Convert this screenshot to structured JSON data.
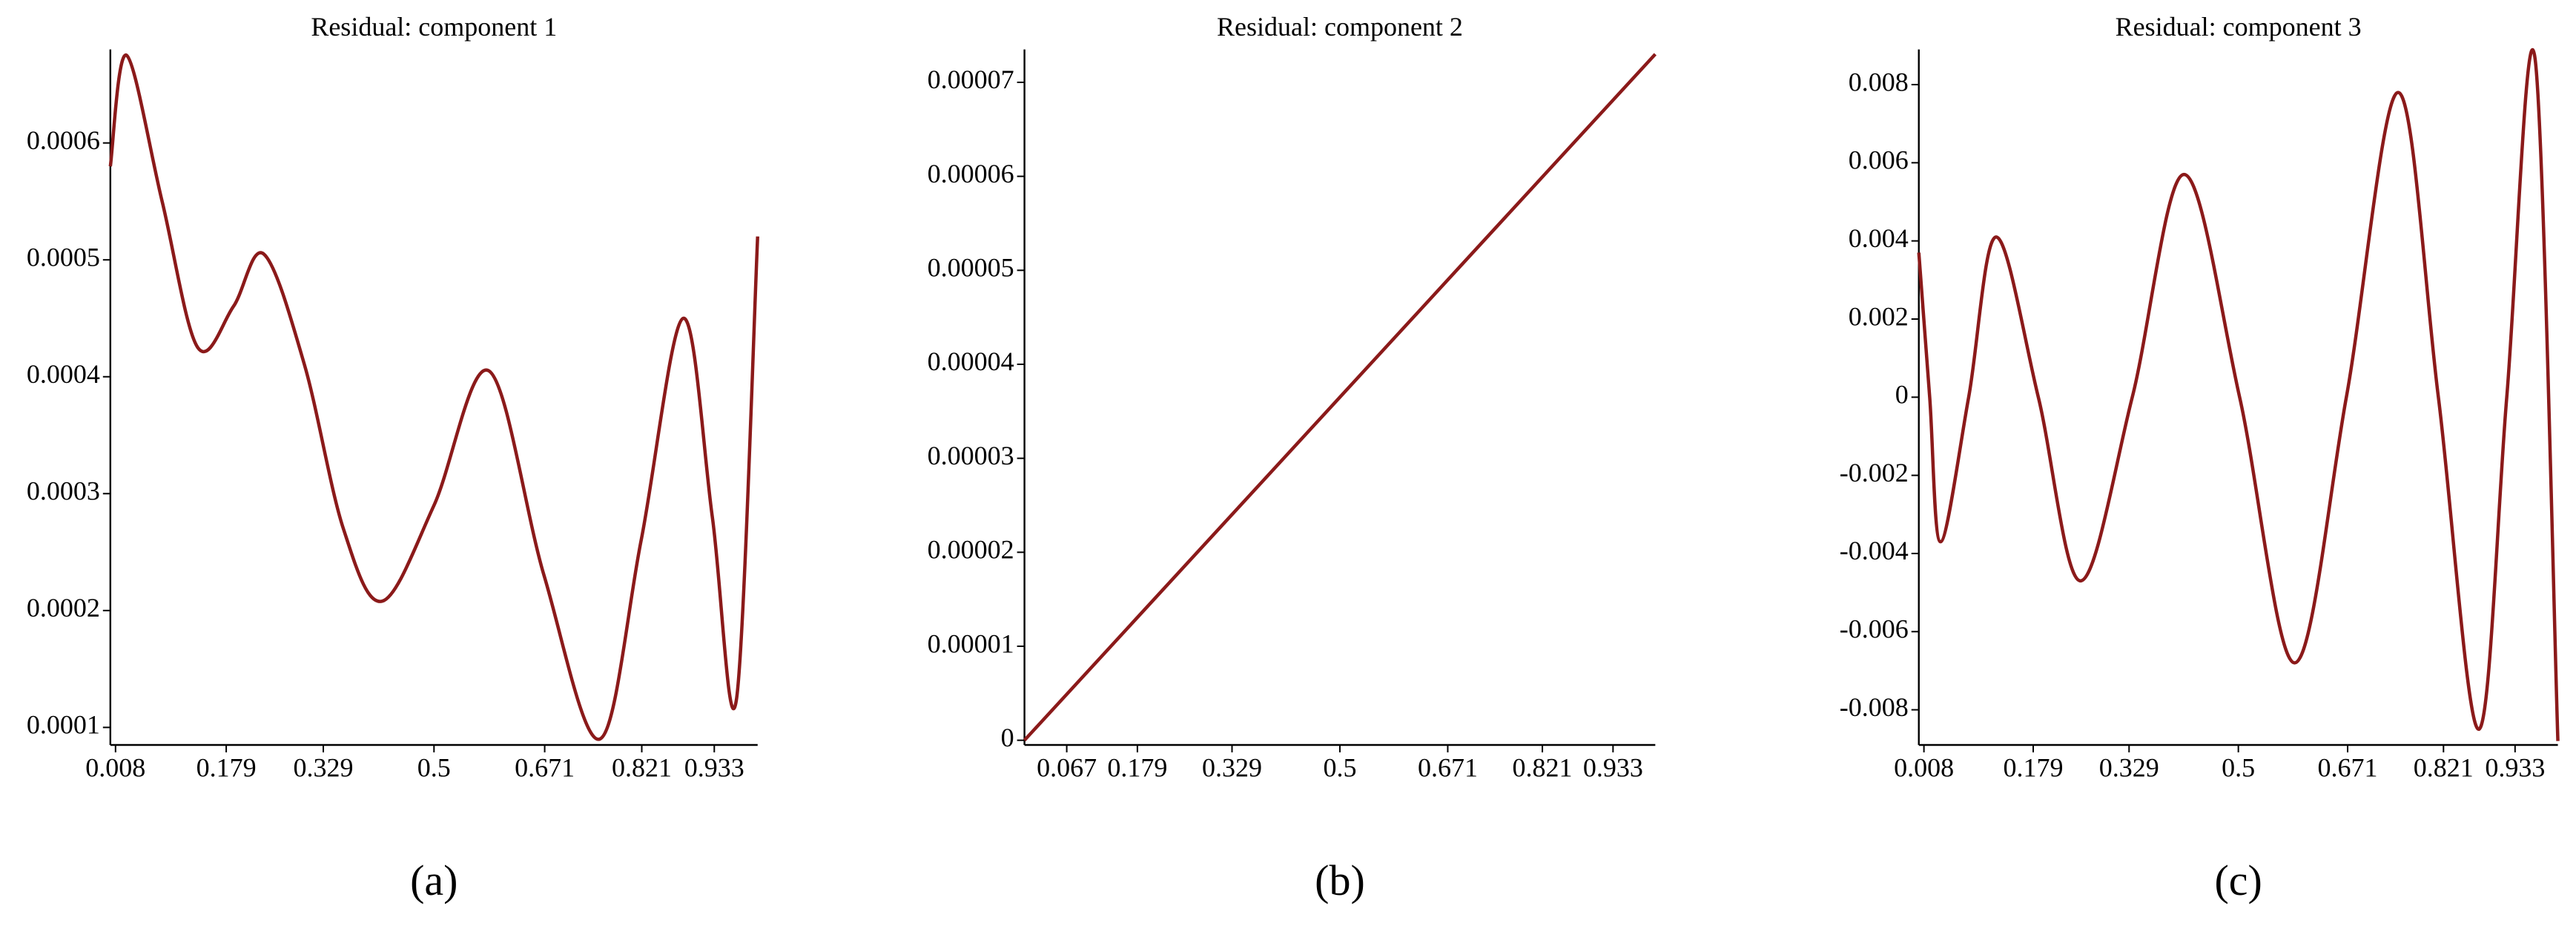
{
  "chart_data": [
    {
      "type": "line",
      "title": "Residual: component 1",
      "caption": "(a)",
      "color": "#8b1a1a",
      "x": [
        0,
        0.025,
        0.08,
        0.135,
        0.19,
        0.237,
        0.3,
        0.36,
        0.42,
        0.5,
        0.585,
        0.67,
        0.756,
        0.82,
        0.885,
        0.93,
        0.967,
        1.0
      ],
      "values": [
        0.00058,
        0.000675,
        0.00055,
        0.000425,
        0.00046,
        0.000505,
        0.00041,
        0.00027,
        0.000208,
        0.00029,
        0.000405,
        0.00023,
        9e-05,
        0.00026,
        0.00045,
        0.00028,
        0.000123,
        0.00052
      ],
      "xlim": [
        0,
        1
      ],
      "xticks": [
        0.008,
        0.179,
        0.329,
        0.5,
        0.671,
        0.821,
        0.933
      ],
      "ylim": [
        8.5e-05,
        0.00068
      ],
      "yticks": [
        0.0001,
        0.0002,
        0.0003,
        0.0004,
        0.0005,
        0.0006
      ]
    },
    {
      "type": "line",
      "title": "Residual: component 2",
      "caption": "(b)",
      "color": "#8b1a1a",
      "x": [
        0,
        0.5,
        1
      ],
      "values": [
        0,
        3.65e-05,
        7.3e-05
      ],
      "xlim": [
        0,
        1
      ],
      "xticks": [
        0.067,
        0.179,
        0.329,
        0.5,
        0.671,
        0.821,
        0.933
      ],
      "ylim": [
        -5e-07,
        7.35e-05
      ],
      "yticks": [
        0,
        1e-05,
        2e-05,
        3e-05,
        4e-05,
        5e-05,
        6e-05,
        7e-05
      ]
    },
    {
      "type": "line",
      "title": "Residual: component 3",
      "caption": "(c)",
      "color": "#8b1a1a",
      "x": [
        0,
        0.017,
        0.034,
        0.078,
        0.121,
        0.187,
        0.253,
        0.334,
        0.415,
        0.502,
        0.588,
        0.669,
        0.75,
        0.813,
        0.876,
        0.92,
        0.964,
        1.0
      ],
      "values": [
        0.0037,
        0,
        -0.0037,
        0,
        0.0041,
        0,
        -0.0047,
        0,
        0.0057,
        0,
        -0.0068,
        0,
        0.0078,
        0,
        -0.0085,
        0,
        0.0087,
        -0.0088
      ],
      "xlim": [
        0,
        1
      ],
      "xticks": [
        0.008,
        0.179,
        0.329,
        0.5,
        0.671,
        0.821,
        0.933
      ],
      "ylim": [
        -0.0089,
        0.0089
      ],
      "yticks": [
        -0.008,
        -0.006,
        -0.004,
        -0.002,
        0,
        0.002,
        0.004,
        0.006,
        0.008
      ]
    }
  ]
}
